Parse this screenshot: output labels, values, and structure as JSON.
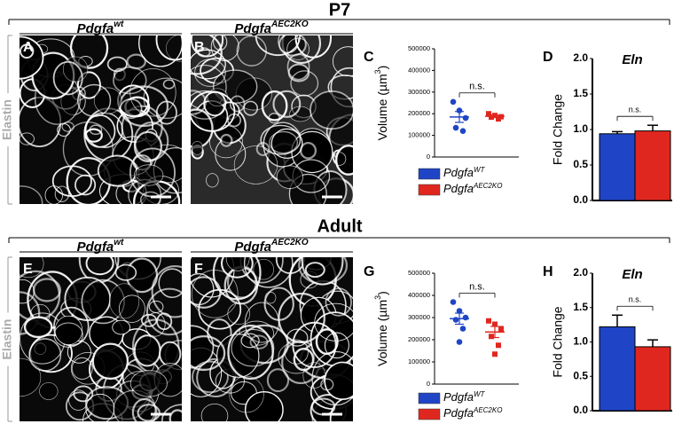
{
  "sections": [
    {
      "title": "P7",
      "panels": [
        {
          "label": "A",
          "genotype": {
            "base": "Pdgfa",
            "sup": "wt"
          }
        },
        {
          "label": "B",
          "genotype": {
            "base": "Pdgfa",
            "sup": "AEC2KO"
          }
        }
      ],
      "stain": "Elastin"
    },
    {
      "title": "Adult",
      "panels": [
        {
          "label": "E",
          "genotype": {
            "base": "Pdgfa",
            "sup": "wt"
          }
        },
        {
          "label": "F",
          "genotype": {
            "base": "Pdgfa",
            "sup": "AEC2KO"
          }
        }
      ],
      "stain": "Elastin"
    }
  ],
  "chart_data": [
    {
      "type": "dot",
      "label": "C",
      "ylabel": {
        "base": "Volume (µm",
        "sup": "3",
        "end": ")"
      },
      "ylim": [
        0,
        500000
      ],
      "yticks": [
        0,
        100000,
        200000,
        300000,
        400000,
        500000
      ],
      "annotation": "n.s.",
      "series": [
        {
          "name": {
            "base": "Pdgfa",
            "sup": "WT"
          },
          "color": "#1f45c6",
          "values": [
            255000,
            215000,
            180000,
            135000,
            120000
          ],
          "mean": 185000,
          "sem": 25000
        },
        {
          "name": {
            "base": "Pdgfa",
            "sup": "AEC2KO"
          },
          "color": "#e0271f",
          "values": [
            200000,
            192000,
            186000,
            184000,
            176000
          ],
          "mean": 188000,
          "sem": 5000
        }
      ]
    },
    {
      "type": "bar",
      "label": "D",
      "title": "Eln",
      "ylabel": "Fold Change",
      "ylim": [
        0,
        2
      ],
      "yticks": [
        {
          "value": 0,
          "label": "0.0"
        },
        0.5,
        {
          "value": 1,
          "label": "1.0"
        },
        1.5,
        {
          "value": 2,
          "label": "2.0"
        }
      ],
      "annotation": "n.s.",
      "values": [
        0.94,
        0.98
      ],
      "errors": [
        0.03,
        0.08
      ],
      "colors": [
        "#1f45c6",
        "#e0271f"
      ]
    },
    {
      "type": "dot",
      "label": "G",
      "ylabel": {
        "base": "Volume (µm",
        "sup": "3",
        "end": ")"
      },
      "ylim": [
        0,
        500000
      ],
      "yticks": [
        0,
        100000,
        200000,
        300000,
        400000,
        500000
      ],
      "annotation": "n.s.",
      "series": [
        {
          "name": {
            "base": "Pdgfa",
            "sup": "WT"
          },
          "color": "#1f45c6",
          "values": [
            370000,
            330000,
            300000,
            290000,
            250000,
            190000
          ],
          "mean": 295000,
          "sem": 25000
        },
        {
          "name": {
            "base": "Pdgfa",
            "sup": "AEC2KO"
          },
          "color": "#e0271f",
          "values": [
            285000,
            270000,
            250000,
            215000,
            175000,
            135000
          ],
          "mean": 235000,
          "sem": 25000
        }
      ]
    },
    {
      "type": "bar",
      "label": "H",
      "title": "Eln",
      "ylabel": "Fold Change",
      "ylim": [
        0,
        2
      ],
      "yticks": [
        {
          "value": 0,
          "label": "0.0"
        },
        0.5,
        {
          "value": 1,
          "label": "1.0"
        },
        1.5,
        {
          "value": 2,
          "label": "2.0"
        }
      ],
      "annotation": "n.s.",
      "values": [
        1.22,
        0.93
      ],
      "errors": [
        0.17,
        0.1
      ],
      "colors": [
        "#1f45c6",
        "#e0271f"
      ]
    }
  ]
}
